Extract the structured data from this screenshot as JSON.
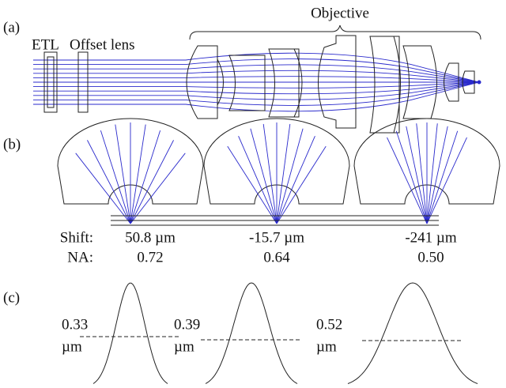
{
  "panel_a": {
    "label": "(a)",
    "etl": "ETL",
    "offset_lens": "Offset lens",
    "objective": "Objective"
  },
  "panel_b": {
    "label": "(b)",
    "shift_label": "Shift:",
    "na_label": "NA:",
    "columns": [
      {
        "shift": "50.8 µm",
        "na": "0.72"
      },
      {
        "shift": "-15.7 µm",
        "na": "0.64"
      },
      {
        "shift": "-241 µm",
        "na": "0.50"
      }
    ]
  },
  "panel_c": {
    "label": "(c)",
    "widths": [
      {
        "value": "0.33",
        "unit": "µm"
      },
      {
        "value": "0.39",
        "unit": "µm"
      },
      {
        "value": "0.52",
        "unit": "µm"
      }
    ]
  }
}
